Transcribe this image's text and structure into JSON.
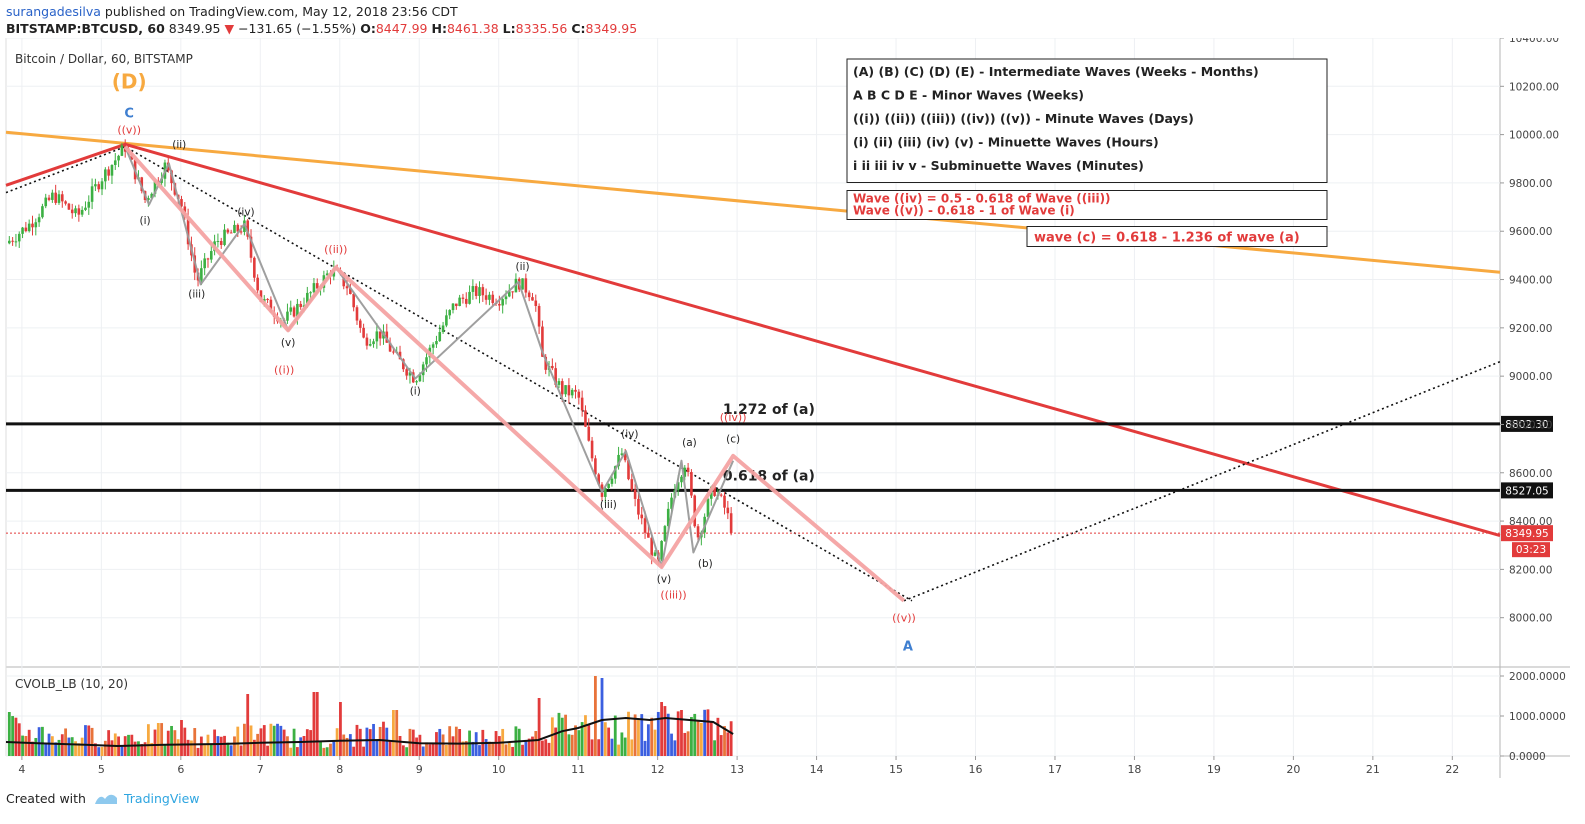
{
  "header": {
    "author": "surangadesilva",
    "published": "published on TradingView.com, May 12, 2018 23:56 CDT",
    "symbol": "BITSTAMP:BTCUSD, 60",
    "last": "8349.95",
    "change": "−131.65 (−1.55%)",
    "o_label": "O:",
    "o": "8447.99",
    "h_label": "H:",
    "h": "8461.38",
    "l_label": "L:",
    "l": "8335.56",
    "c_label": "C:",
    "c": "8349.95"
  },
  "footer": {
    "created_with": "Created with",
    "brand": "TradingView"
  },
  "colors": {
    "up": "#3cb043",
    "down": "#e23b3b",
    "orange": "#f7a940",
    "wave": "#f4a3a3",
    "blue_label": "#3f7fd0"
  },
  "chart_data": {
    "type": "candlestick",
    "title": "Bitcoin / Dollar, 60, BITSTAMP",
    "price_axis": {
      "min": 7800,
      "max": 10400,
      "ticks": [
        {
          "v": 10400,
          "label": "10400.00"
        },
        {
          "v": 10200,
          "label": "10200.00"
        },
        {
          "v": 10000,
          "label": "10000.00"
        },
        {
          "v": 9800,
          "label": "9800.00"
        },
        {
          "v": 9600,
          "label": "9600.00"
        },
        {
          "v": 9400,
          "label": "9400.00"
        },
        {
          "v": 9200,
          "label": "9200.00"
        },
        {
          "v": 9000,
          "label": "9000.00"
        },
        {
          "v": 8800,
          "label": "8800.00"
        },
        {
          "v": 8600,
          "label": "8600.00"
        },
        {
          "v": 8400,
          "label": "8400.00"
        },
        {
          "v": 8200,
          "label": "8200.00"
        },
        {
          "v": 8000,
          "label": "8000.00"
        }
      ]
    },
    "time_axis": {
      "min": 3.8,
      "max": 22.6,
      "ticks": [
        {
          "v": 4,
          "label": "4"
        },
        {
          "v": 5,
          "label": "5"
        },
        {
          "v": 6,
          "label": "6"
        },
        {
          "v": 7,
          "label": "7"
        },
        {
          "v": 8,
          "label": "8"
        },
        {
          "v": 9,
          "label": "9"
        },
        {
          "v": 10,
          "label": "10"
        },
        {
          "v": 11,
          "label": "11"
        },
        {
          "v": 12,
          "label": "12"
        },
        {
          "v": 13,
          "label": "13"
        },
        {
          "v": 14,
          "label": "14"
        },
        {
          "v": 15,
          "label": "15"
        },
        {
          "v": 16,
          "label": "16"
        },
        {
          "v": 17,
          "label": "17"
        },
        {
          "v": 18,
          "label": "18"
        },
        {
          "v": 19,
          "label": "19"
        },
        {
          "v": 20,
          "label": "20"
        },
        {
          "v": 21,
          "label": "21"
        },
        {
          "v": 22,
          "label": "22"
        }
      ]
    },
    "price_path": [
      [
        3.8,
        9550
      ],
      [
        4.1,
        9630
      ],
      [
        4.4,
        9750
      ],
      [
        4.7,
        9660
      ],
      [
        5.0,
        9820
      ],
      [
        5.3,
        9950
      ],
      [
        5.55,
        9730
      ],
      [
        5.8,
        9870
      ],
      [
        6.0,
        9720
      ],
      [
        6.2,
        9390
      ],
      [
        6.45,
        9560
      ],
      [
        6.8,
        9620
      ],
      [
        7.0,
        9320
      ],
      [
        7.3,
        9230
      ],
      [
        7.6,
        9330
      ],
      [
        7.9,
        9440
      ],
      [
        8.1,
        9370
      ],
      [
        8.3,
        9150
      ],
      [
        8.5,
        9180
      ],
      [
        8.7,
        9080
      ],
      [
        8.95,
        8990
      ],
      [
        9.2,
        9150
      ],
      [
        9.45,
        9300
      ],
      [
        9.7,
        9350
      ],
      [
        10.0,
        9320
      ],
      [
        10.25,
        9390
      ],
      [
        10.45,
        9330
      ],
      [
        10.55,
        9070
      ],
      [
        10.8,
        8940
      ],
      [
        11.0,
        8920
      ],
      [
        11.15,
        8690
      ],
      [
        11.3,
        8520
      ],
      [
        11.55,
        8680
      ],
      [
        11.7,
        8490
      ],
      [
        12.0,
        8210
      ],
      [
        12.2,
        8540
      ],
      [
        12.35,
        8650
      ],
      [
        12.5,
        8330
      ],
      [
        12.7,
        8540
      ],
      [
        12.85,
        8450
      ],
      [
        12.95,
        8350
      ]
    ],
    "horizontal_levels": [
      {
        "price": 8802.3,
        "label": "1.272 of (a)",
        "tag": "8802.30"
      },
      {
        "price": 8527.05,
        "label": "0.618 of (a)",
        "tag": "8527.05"
      }
    ],
    "last_price": {
      "price": 8349.95,
      "tag": "8349.95",
      "countdown": "03:23"
    },
    "trendlines": [
      {
        "name": "orange",
        "points": [
          [
            3.8,
            10010
          ],
          [
            22.6,
            9430
          ]
        ]
      },
      {
        "name": "red",
        "points": [
          [
            3.8,
            9790
          ],
          [
            5.3,
            9960
          ],
          [
            22.6,
            8340
          ]
        ]
      },
      {
        "name": "dotted-top",
        "points": [
          [
            3.8,
            9760
          ],
          [
            5.3,
            9950
          ],
          [
            15.2,
            8070
          ]
        ]
      },
      {
        "name": "dotted-projection",
        "points": [
          [
            15.1,
            8070
          ],
          [
            22.6,
            9060
          ]
        ]
      }
    ],
    "wave_lines": [
      {
        "name": "gray-subwaves",
        "points": [
          [
            5.3,
            9950
          ],
          [
            5.6,
            9710
          ],
          [
            5.85,
            9880
          ],
          [
            6.25,
            9380
          ],
          [
            6.8,
            9630
          ],
          [
            7.35,
            9190
          ],
          [
            7.95,
            9450
          ],
          [
            8.95,
            8990
          ],
          [
            10.25,
            9390
          ],
          [
            10.55,
            9100
          ],
          [
            11.3,
            8520
          ],
          [
            11.6,
            8690
          ],
          [
            12.05,
            8210
          ],
          [
            12.3,
            8650
          ],
          [
            12.45,
            8270
          ],
          [
            12.95,
            8650
          ]
        ]
      },
      {
        "name": "pink-main",
        "points": [
          [
            5.3,
            9950
          ],
          [
            7.35,
            9190
          ],
          [
            7.95,
            9450
          ],
          [
            12.05,
            8210
          ],
          [
            12.95,
            8670
          ],
          [
            15.1,
            8070
          ]
        ]
      }
    ],
    "wave_labels": [
      {
        "t": 5.35,
        "p": 10190,
        "text": "(D)",
        "style": "orange"
      },
      {
        "t": 5.35,
        "p": 10070,
        "text": "C",
        "style": "blue"
      },
      {
        "t": 5.35,
        "p": 10005,
        "text": "((v))",
        "style": "red"
      },
      {
        "t": 5.98,
        "p": 9945,
        "text": "(ii)",
        "style": "black"
      },
      {
        "t": 5.55,
        "p": 9630,
        "text": "(i)",
        "style": "black"
      },
      {
        "t": 6.82,
        "p": 9665,
        "text": "(iv)",
        "style": "black"
      },
      {
        "t": 6.2,
        "p": 9325,
        "text": "(iii)",
        "style": "black"
      },
      {
        "t": 7.35,
        "p": 9125,
        "text": "(v)",
        "style": "black"
      },
      {
        "t": 7.3,
        "p": 9010,
        "text": "((i))",
        "style": "red"
      },
      {
        "t": 7.95,
        "p": 9510,
        "text": "((ii))",
        "style": "red"
      },
      {
        "t": 8.95,
        "p": 8925,
        "text": "(i)",
        "style": "black"
      },
      {
        "t": 10.3,
        "p": 9440,
        "text": "(ii)",
        "style": "black"
      },
      {
        "t": 11.65,
        "p": 8745,
        "text": "(iv)",
        "style": "black"
      },
      {
        "t": 11.38,
        "p": 8455,
        "text": "(iii)",
        "style": "black"
      },
      {
        "t": 12.08,
        "p": 8145,
        "text": "(v)",
        "style": "black"
      },
      {
        "t": 12.2,
        "p": 8080,
        "text": "((iii))",
        "style": "red"
      },
      {
        "t": 12.4,
        "p": 8710,
        "text": "(a)",
        "style": "black"
      },
      {
        "t": 12.6,
        "p": 8210,
        "text": "(b)",
        "style": "black"
      },
      {
        "t": 12.95,
        "p": 8725,
        "text": "(c)",
        "style": "black"
      },
      {
        "t": 12.95,
        "p": 8815,
        "text": "((iv))",
        "style": "red"
      },
      {
        "t": 15.1,
        "p": 7985,
        "text": "((v))",
        "style": "red"
      },
      {
        "t": 15.15,
        "p": 7865,
        "text": "A",
        "style": "blue"
      }
    ],
    "legend_box": [
      "(A) (B) (C) (D) (E) - Intermediate Waves (Weeks - Months)",
      "A B C D E - Minor Waves (Weeks)",
      "((i)) ((ii)) ((iii)) ((iv)) ((v)) - Minute Waves (Days)",
      "(i) (ii) (iii) (iv) (v) - Minuette Waves (Hours)",
      "i ii iii iv v - Subminuette Waves (Minutes)"
    ],
    "rule_box": [
      "Wave ((iv) = 0.5 - 0.618 of Wave ((iii))",
      "Wave ((v)) - 0.618 - 1 of Wave (i)"
    ],
    "rule_box_2": "wave (c) = 0.618 - 1.236 of wave (a)",
    "indicator": {
      "title": "CVOLB_LB (10, 20)",
      "min": 0,
      "max": 2200,
      "ticks": [
        {
          "v": 2000,
          "label": "2000.0000"
        },
        {
          "v": 1000,
          "label": "1000.0000"
        },
        {
          "v": 0,
          "label": "0.0000"
        }
      ],
      "volume_profile": [
        [
          3.8,
          700
        ],
        [
          4.5,
          550
        ],
        [
          5.2,
          520
        ],
        [
          5.8,
          560
        ],
        [
          6.5,
          450
        ],
        [
          7.0,
          650
        ],
        [
          7.5,
          450
        ],
        [
          8.0,
          500
        ],
        [
          8.5,
          600
        ],
        [
          9.0,
          500
        ],
        [
          9.5,
          550
        ],
        [
          10.0,
          500
        ],
        [
          10.5,
          650
        ],
        [
          11.0,
          850
        ],
        [
          11.5,
          700
        ],
        [
          12.0,
          1000
        ],
        [
          12.5,
          850
        ],
        [
          12.95,
          650
        ]
      ],
      "peaks": [
        [
          3.85,
          1100
        ],
        [
          6.0,
          900
        ],
        [
          6.85,
          1550
        ],
        [
          7.7,
          1600
        ],
        [
          8.0,
          1350
        ],
        [
          8.7,
          1150
        ],
        [
          10.5,
          1450
        ],
        [
          11.2,
          2000
        ],
        [
          11.3,
          1950
        ],
        [
          12.05,
          1350
        ],
        [
          12.3,
          1150
        ]
      ],
      "ma_path": [
        [
          3.8,
          350
        ],
        [
          4.2,
          320
        ],
        [
          4.8,
          280
        ],
        [
          5.2,
          250
        ],
        [
          5.8,
          280
        ],
        [
          6.5,
          300
        ],
        [
          7.0,
          330
        ],
        [
          7.5,
          350
        ],
        [
          8.0,
          380
        ],
        [
          8.5,
          400
        ],
        [
          9.0,
          320
        ],
        [
          9.5,
          310
        ],
        [
          10.0,
          330
        ],
        [
          10.5,
          400
        ],
        [
          10.8,
          620
        ],
        [
          11.0,
          700
        ],
        [
          11.3,
          900
        ],
        [
          11.6,
          950
        ],
        [
          11.9,
          900
        ],
        [
          12.1,
          950
        ],
        [
          12.4,
          900
        ],
        [
          12.7,
          850
        ],
        [
          12.95,
          550
        ]
      ]
    }
  }
}
